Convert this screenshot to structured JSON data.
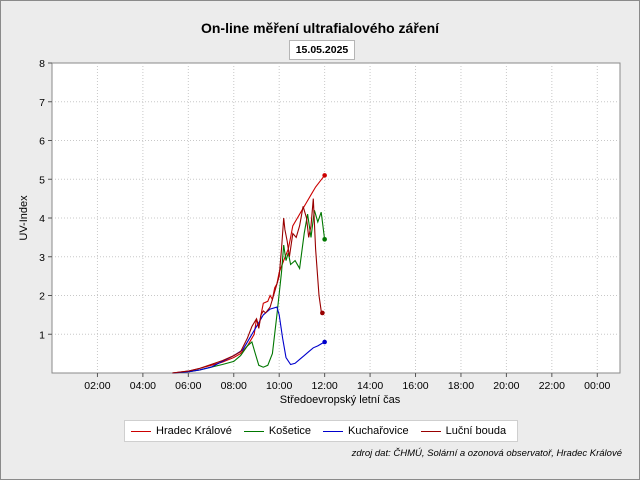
{
  "title": "On-line měření ultrafialového záření",
  "date": "15.05.2025",
  "source": "zdroj dat: ČHMÚ, Solární a ozonová observatoř, Hradec Králové",
  "chart_data": {
    "type": "line",
    "xlabel": "Středoevropský letní čas",
    "ylabel": "UV-Index",
    "xlim": [
      0,
      25
    ],
    "ylim": [
      0,
      8
    ],
    "yticks": [
      1,
      2,
      3,
      4,
      5,
      6,
      7,
      8
    ],
    "xticks": [
      {
        "x": 2,
        "label": "02:00"
      },
      {
        "x": 4,
        "label": "04:00"
      },
      {
        "x": 6,
        "label": "06:00"
      },
      {
        "x": 8,
        "label": "08:00"
      },
      {
        "x": 10,
        "label": "10:00"
      },
      {
        "x": 12,
        "label": "12:00"
      },
      {
        "x": 14,
        "label": "14:00"
      },
      {
        "x": 16,
        "label": "16:00"
      },
      {
        "x": 18,
        "label": "18:00"
      },
      {
        "x": 20,
        "label": "20:00"
      },
      {
        "x": 22,
        "label": "22:00"
      },
      {
        "x": 24,
        "label": "00:00"
      }
    ],
    "grid": true,
    "legend_position": "bottom",
    "series": [
      {
        "name": "Hradec Králové",
        "color": "#cc0000",
        "x": [
          5.3,
          6.0,
          6.5,
          7.0,
          7.5,
          8.0,
          8.3,
          8.6,
          8.9,
          9.0,
          9.1,
          9.2,
          9.3,
          9.5,
          9.6,
          9.7,
          9.8,
          9.9,
          10.0,
          10.2,
          10.4,
          10.5,
          10.6,
          10.8,
          11.0,
          11.2,
          11.4,
          11.6,
          11.8,
          12.0
        ],
        "y": [
          0.0,
          0.05,
          0.12,
          0.2,
          0.28,
          0.4,
          0.5,
          0.7,
          1.0,
          1.4,
          1.2,
          1.5,
          1.8,
          1.85,
          2.0,
          1.9,
          2.2,
          2.3,
          2.6,
          2.9,
          3.2,
          3.5,
          3.8,
          4.0,
          4.2,
          4.4,
          4.6,
          4.8,
          4.95,
          5.1
        ]
      },
      {
        "name": "Košetice",
        "color": "#007700",
        "x": [
          5.3,
          6.0,
          6.5,
          7.0,
          7.5,
          8.0,
          8.3,
          8.6,
          8.8,
          8.95,
          9.1,
          9.3,
          9.5,
          9.7,
          9.9,
          10.1,
          10.2,
          10.3,
          10.4,
          10.5,
          10.7,
          10.9,
          11.1,
          11.25,
          11.4,
          11.55,
          11.7,
          11.85,
          12.0
        ],
        "y": [
          0.0,
          0.03,
          0.08,
          0.15,
          0.22,
          0.3,
          0.45,
          0.7,
          0.8,
          0.5,
          0.2,
          0.15,
          0.2,
          0.5,
          1.5,
          2.6,
          3.3,
          2.9,
          3.1,
          2.8,
          2.9,
          2.7,
          3.6,
          4.1,
          3.5,
          4.2,
          3.9,
          4.15,
          3.45
        ]
      },
      {
        "name": "Kuchařovice",
        "color": "#0000cc",
        "x": [
          5.3,
          6.0,
          6.5,
          7.0,
          7.5,
          8.0,
          8.4,
          8.8,
          9.1,
          9.3,
          9.6,
          9.9,
          10.0,
          10.15,
          10.3,
          10.5,
          10.7,
          10.9,
          11.1,
          11.3,
          11.5,
          11.7,
          11.85,
          12.0
        ],
        "y": [
          0.0,
          0.03,
          0.08,
          0.15,
          0.3,
          0.45,
          0.6,
          1.0,
          1.3,
          1.5,
          1.65,
          1.7,
          1.5,
          0.9,
          0.4,
          0.22,
          0.25,
          0.35,
          0.45,
          0.55,
          0.65,
          0.7,
          0.75,
          0.8
        ]
      },
      {
        "name": "Luční bouda",
        "color": "#990000",
        "x": [
          5.3,
          6.0,
          6.5,
          7.0,
          7.5,
          8.0,
          8.3,
          8.6,
          8.8,
          9.0,
          9.1,
          9.2,
          9.3,
          9.4,
          9.6,
          9.8,
          10.0,
          10.1,
          10.2,
          10.25,
          10.35,
          10.45,
          10.6,
          10.75,
          10.9,
          11.05,
          11.2,
          11.3,
          11.4,
          11.5,
          11.6,
          11.75,
          11.85,
          11.9
        ],
        "y": [
          0.0,
          0.05,
          0.12,
          0.22,
          0.32,
          0.45,
          0.55,
          0.9,
          1.2,
          1.4,
          1.15,
          1.5,
          1.6,
          1.55,
          1.7,
          2.1,
          2.5,
          3.2,
          4.0,
          3.7,
          3.4,
          3.0,
          3.6,
          3.5,
          3.8,
          4.3,
          4.0,
          3.5,
          3.8,
          4.5,
          3.2,
          2.0,
          1.6,
          1.55
        ]
      }
    ]
  }
}
